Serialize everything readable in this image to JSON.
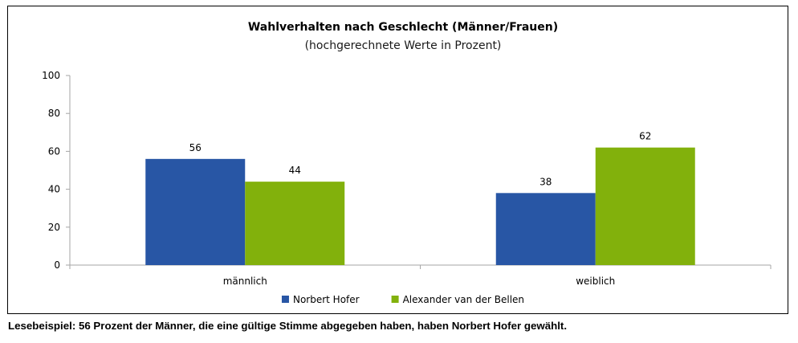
{
  "chart_data": {
    "type": "bar",
    "title": "Wahlverhalten nach Geschlecht (Männer/Frauen)",
    "subtitle": "(hochgerechnete Werte in Prozent)",
    "categories": [
      "männlich",
      "weiblich"
    ],
    "series": [
      {
        "name": "Norbert Hofer",
        "color": "#2856a5",
        "values": [
          56,
          38
        ]
      },
      {
        "name": "Alexander van der Bellen",
        "color": "#82b10c",
        "values": [
          44,
          62
        ]
      }
    ],
    "yticks": [
      "0",
      "20",
      "40",
      "60",
      "80",
      "100"
    ],
    "ylim": [
      0,
      100
    ],
    "xlabel": "",
    "ylabel": "",
    "grid": false,
    "data_labels": true,
    "legend_position": "bottom"
  },
  "caption": "Lesebeispiel: 56 Prozent der Männer, die eine gültige Stimme abgegeben haben, haben Norbert Hofer gewählt."
}
